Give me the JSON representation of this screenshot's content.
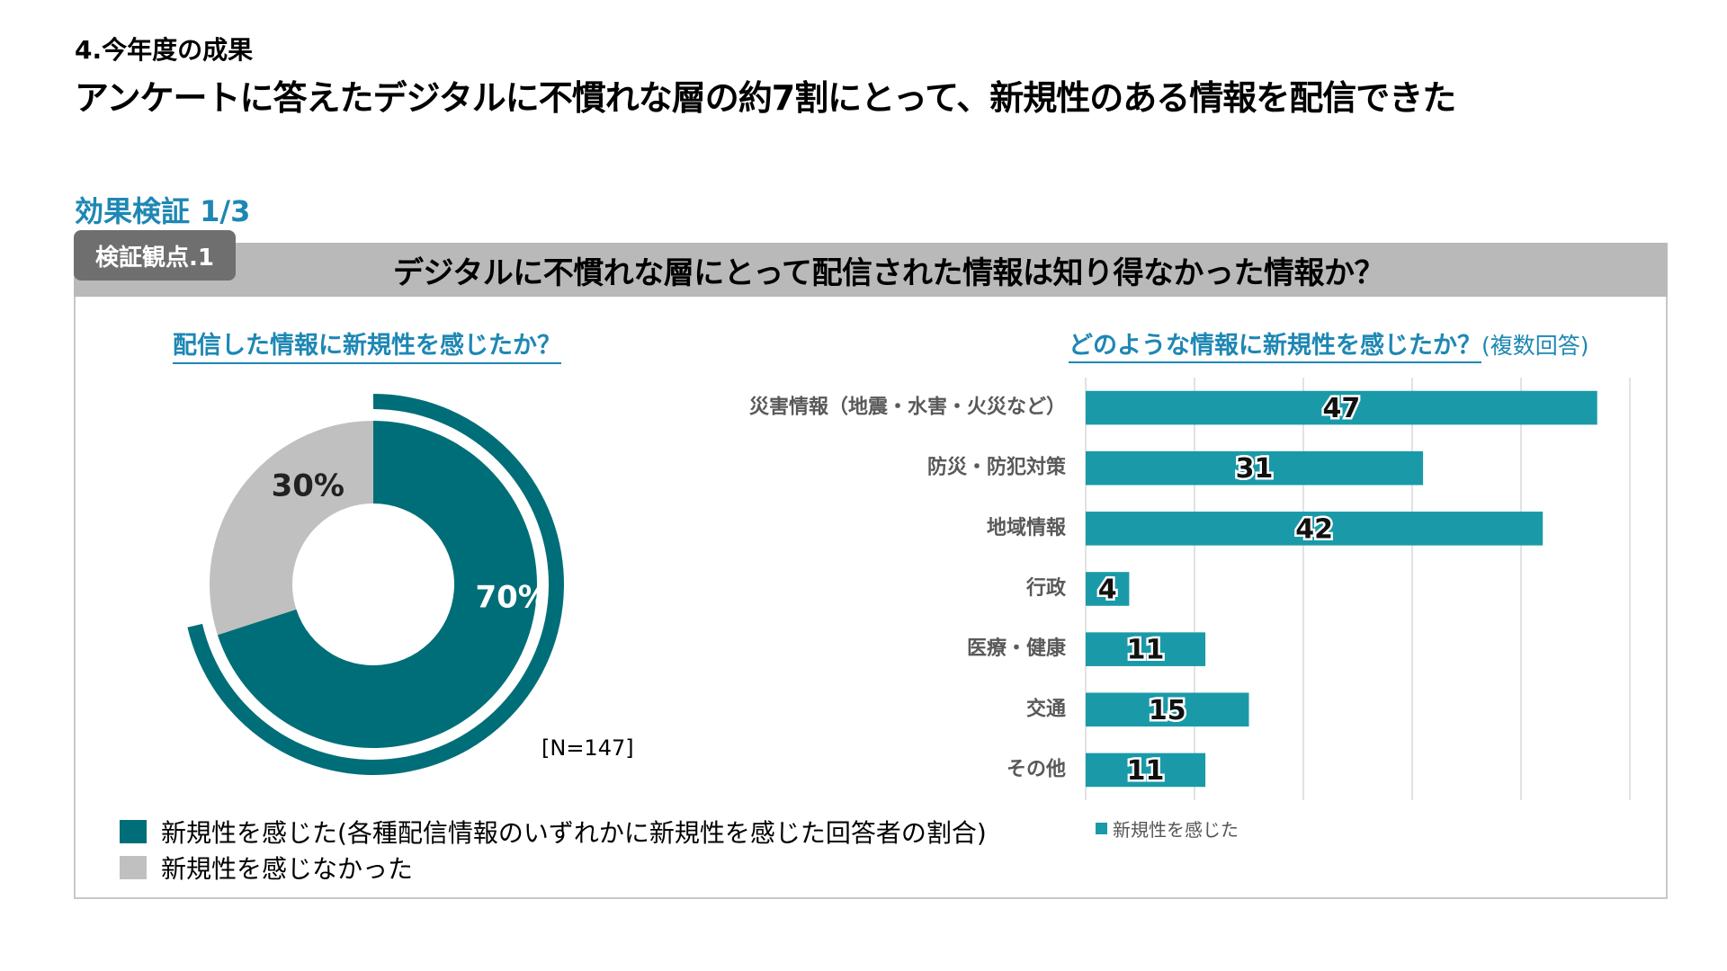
{
  "header": {
    "section": "4.今年度の成果",
    "headline": "アンケートに答えたデジタルに不慣れな層の約7割にとって、新規性のある情報を配信できた"
  },
  "verify_title": "効果検証 1/3",
  "badge": "検証観点.1",
  "panel_question": "デジタルに不慣れな層にとって配信された情報は知り得なかった情報か？",
  "left": {
    "question": "配信した情報に新規性を感じたか？",
    "n_label": "[N=147]",
    "legend": [
      {
        "label": "新規性を感じた(各種配信情報のいずれかに新規性を感じた回答者の割合)",
        "color": "#006e78"
      },
      {
        "label": "新規性を感じなかった",
        "color": "#c0c0c0"
      }
    ]
  },
  "right": {
    "question": "どのような情報に新規性を感じたか？",
    "question_note": "(複数回答)",
    "legend": {
      "label": "新規性を感じた",
      "color": "#1a9aa8"
    }
  },
  "chart_data": [
    {
      "type": "pie",
      "title": "配信した情報に新規性を感じたか？",
      "categories": [
        "新規性を感じた",
        "新規性を感じなかった"
      ],
      "values": [
        70,
        30
      ],
      "labels": [
        "70%",
        "30%"
      ],
      "colors": [
        "#006e78",
        "#c0c0c0"
      ],
      "total": "[N=147]"
    },
    {
      "type": "bar",
      "orientation": "horizontal",
      "title": "どのような情報に新規性を感じたか？",
      "categories": [
        "災害情報（地震・水害・火災など）",
        "防災・防犯対策",
        "地域情報",
        "行政",
        "医療・健康",
        "交通",
        "その他"
      ],
      "series": [
        {
          "name": "新規性を感じた",
          "values": [
            47,
            31,
            42,
            4,
            11,
            15,
            11
          ]
        }
      ],
      "color": "#1a9aa8",
      "xlim": [
        0,
        50
      ],
      "grid": true,
      "legend": "bottom-left"
    }
  ]
}
